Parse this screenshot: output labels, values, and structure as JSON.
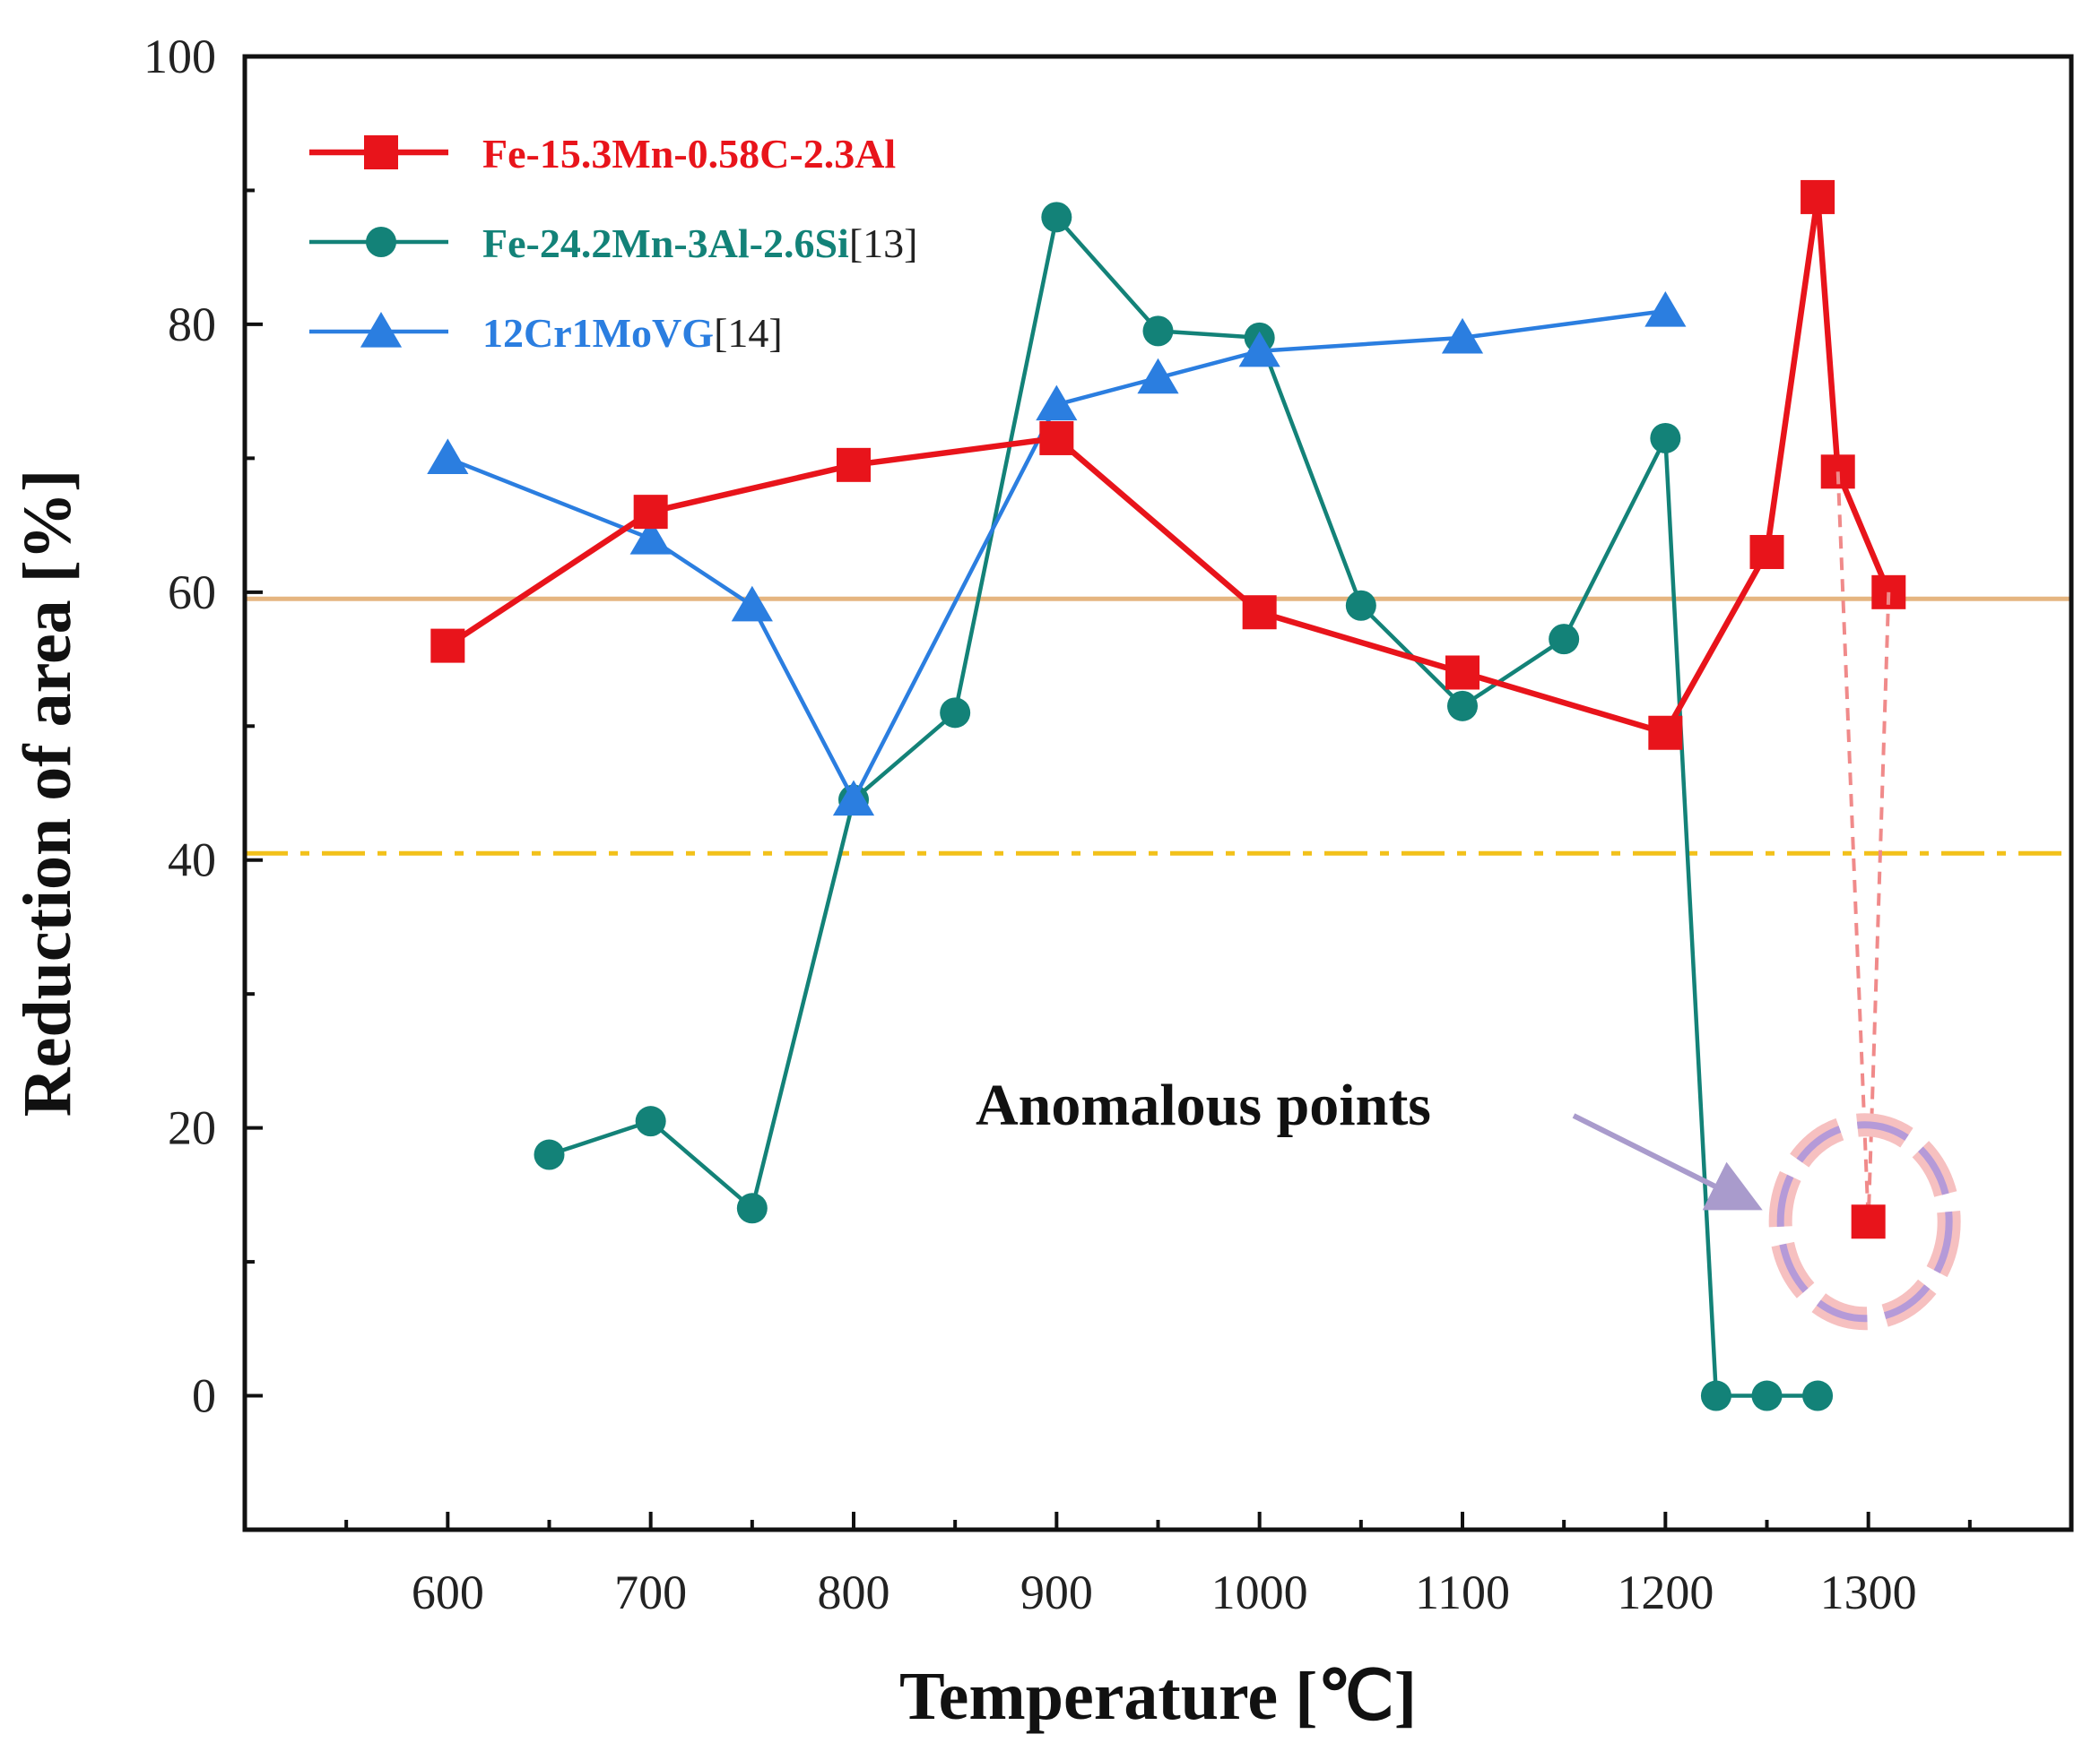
{
  "chart_data": {
    "type": "line",
    "xlabel": "Temperature [℃]",
    "ylabel": "Reduction of area [%]",
    "xlim": [
      500,
      1400
    ],
    "ylim": [
      -10,
      100
    ],
    "xticks": [
      600,
      700,
      800,
      900,
      1000,
      1100,
      1200,
      1300
    ],
    "xticks_minor": [
      550,
      650,
      750,
      850,
      950,
      1050,
      1150,
      1250,
      1350
    ],
    "yticks": [
      0,
      20,
      40,
      60,
      80,
      100
    ],
    "yticks_minor": [
      10,
      30,
      50,
      70,
      90
    ],
    "grid": false,
    "legend_position": "top-left",
    "series": [
      {
        "name": "Fe-15.3Mn-0.58C-2.3Al",
        "ref": "",
        "color": "#e8141b",
        "marker": "square",
        "x": [
          600,
          700,
          800,
          900,
          1000,
          1100,
          1200,
          1250,
          1275,
          1285,
          1310
        ],
        "y": [
          56,
          66,
          69.5,
          71.5,
          58.5,
          54,
          49.5,
          63,
          89.5,
          69,
          60
        ]
      },
      {
        "name": "Fe-24.2Mn-3Al-2.6Si",
        "ref": "[13]",
        "color": "#138278",
        "marker": "circle",
        "x": [
          650,
          700,
          750,
          800,
          850,
          900,
          950,
          1000,
          1050,
          1100,
          1150,
          1200,
          1225,
          1250,
          1275
        ],
        "y": [
          18,
          20.5,
          14,
          44.5,
          51,
          88,
          79.5,
          79,
          59,
          51.5,
          56.5,
          71.5,
          0,
          0,
          0
        ]
      },
      {
        "name": "12Cr1MoVG",
        "ref": "[14]",
        "color": "#2b7ee0",
        "marker": "triangle",
        "x": [
          600,
          700,
          750,
          800,
          900,
          950,
          1000,
          1100,
          1200
        ],
        "y": [
          70,
          64,
          59,
          44.5,
          74,
          76,
          78,
          79,
          81
        ]
      }
    ],
    "reference_lines": [
      {
        "y": 59.5,
        "style": "solid",
        "color": "#e5b580"
      },
      {
        "y": 40.5,
        "style": "dash-dot",
        "color": "#f2c11a"
      }
    ],
    "anomalous_point": {
      "x": 1300,
      "y": 13,
      "color": "#e8141b"
    },
    "annotation": {
      "text": "Anomalous points"
    }
  }
}
